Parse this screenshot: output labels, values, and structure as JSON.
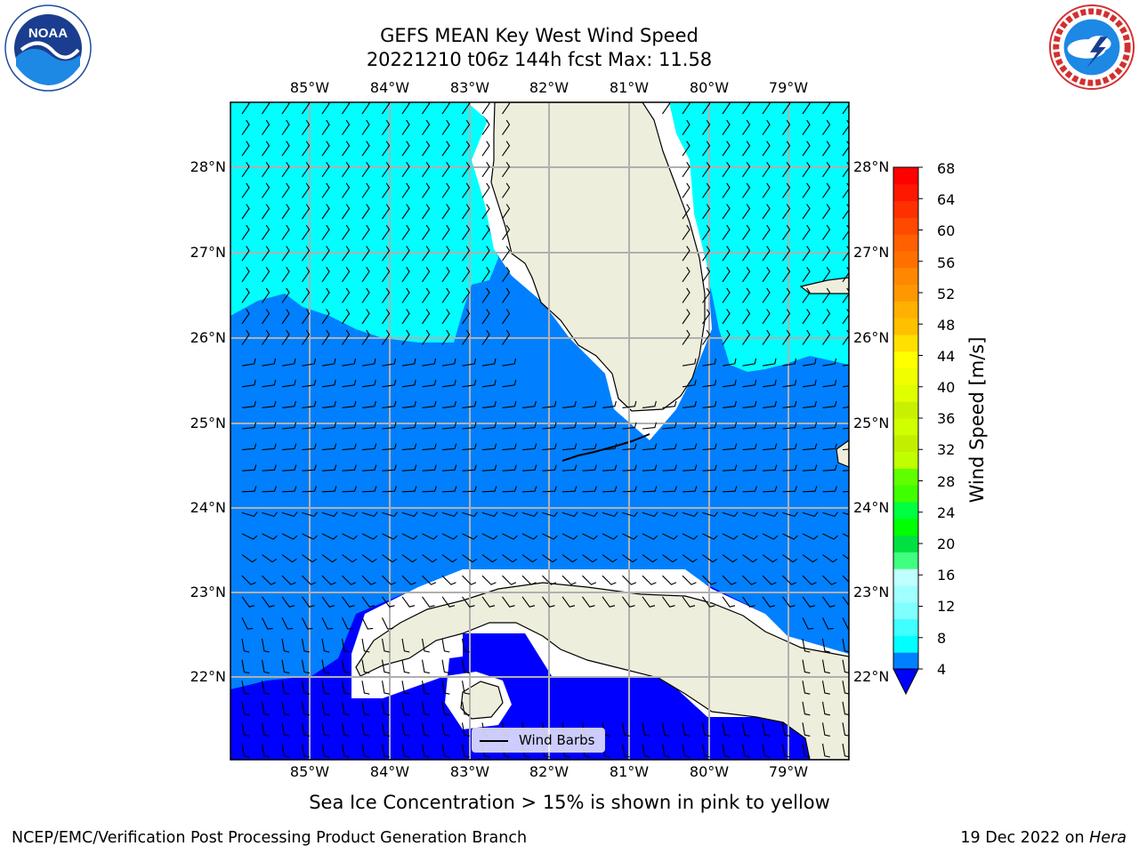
{
  "title": {
    "line1": "GEFS MEAN Key West Wind Speed",
    "line2": "20221210 t06z 144h fcst   Max: 11.58"
  },
  "logos": {
    "noaa_text": "NOAA",
    "noaa_ring_text": "NATIONAL OCEANIC AND ATMOSPHERIC ADMINISTRATION · U.S. DEPARTMENT OF COMMERCE",
    "nws_ring_text": "NATIONAL WEATHER SERVICE"
  },
  "map": {
    "lon_labels": [
      "85°W",
      "84°W",
      "83°W",
      "82°W",
      "81°W",
      "80°W",
      "79°W"
    ],
    "lat_labels": [
      "28°N",
      "27°N",
      "26°N",
      "25°N",
      "24°N",
      "23°N",
      "22°N"
    ],
    "legend_label": "Wind Barbs",
    "colors": {
      "land": "#eeeedc",
      "cyan_band": "#00ffff",
      "blue_band": "#0080ff",
      "deep_blue_band": "#0000ff",
      "grid": "#b0b0b0"
    }
  },
  "colorbar": {
    "title": "Wind Speed [m/s]",
    "ticks": [
      "4",
      "8",
      "12",
      "16",
      "20",
      "24",
      "28",
      "32",
      "36",
      "40",
      "44",
      "48",
      "52",
      "56",
      "60",
      "64",
      "68"
    ],
    "bins": [
      {
        "range": "4-8",
        "color": "#0080ff"
      },
      {
        "range": "8-12",
        "color": "#00ffff"
      },
      {
        "range": "12-14",
        "color": "#40ffff"
      },
      {
        "range": "14-16",
        "color": "#80ffff"
      },
      {
        "range": "16-18",
        "color": "#a0ffff"
      },
      {
        "range": "18-20",
        "color": "#c0ffff"
      },
      {
        "range": "20-22",
        "color": "#40ff80"
      },
      {
        "range": "22-24",
        "color": "#00e040"
      },
      {
        "range": "24-26",
        "color": "#00ff00"
      },
      {
        "range": "26-28",
        "color": "#00ff40"
      },
      {
        "range": "28-30",
        "color": "#40ff00"
      },
      {
        "range": "30-32",
        "color": "#60ff00"
      },
      {
        "range": "32-34",
        "color": "#c0ff00"
      },
      {
        "range": "34-36",
        "color": "#c0f000"
      },
      {
        "range": "36-38",
        "color": "#d0ff00"
      },
      {
        "range": "38-40",
        "color": "#c8f000"
      },
      {
        "range": "40-42",
        "color": "#e0ff00"
      },
      {
        "range": "42-44",
        "color": "#f0ff00"
      },
      {
        "range": "44-46",
        "color": "#ffff00"
      },
      {
        "range": "46-48",
        "color": "#ffe000"
      },
      {
        "range": "48-50",
        "color": "#ffc000"
      },
      {
        "range": "50-52",
        "color": "#ffb000"
      },
      {
        "range": "52-54",
        "color": "#ff9800"
      },
      {
        "range": "54-56",
        "color": "#ff8800"
      },
      {
        "range": "56-58",
        "color": "#ff7000"
      },
      {
        "range": "58-60",
        "color": "#ff6000"
      },
      {
        "range": "60-62",
        "color": "#ff4800"
      },
      {
        "range": "62-64",
        "color": "#ff3000"
      },
      {
        "range": "64-66",
        "color": "#ff1800"
      },
      {
        "range": "66-68",
        "color": "#ff0000"
      }
    ],
    "under_color": "#0000ff"
  },
  "caption": "Sea Ice Concentration > 15% is shown in pink to yellow",
  "footer": {
    "left": "NCEP/EMC/Verification Post Processing Product Generation Branch",
    "right_date": "19 Dec 2022 on ",
    "right_host": "Hera"
  }
}
